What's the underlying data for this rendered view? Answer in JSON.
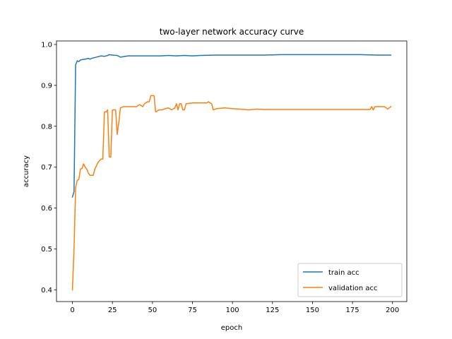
{
  "chart_data": {
    "type": "line",
    "title": "two-layer network accuracy curve",
    "xlabel": "epoch",
    "ylabel": "accuracy",
    "xlim": [
      -9.95,
      208.95
    ],
    "ylim": [
      0.3715,
      1.0085
    ],
    "xticks": [
      0,
      25,
      50,
      75,
      100,
      125,
      150,
      175,
      200
    ],
    "yticks": [
      0.4,
      0.5,
      0.6,
      0.7,
      0.8,
      0.9,
      1.0
    ],
    "xtick_labels": [
      "0",
      "25",
      "50",
      "75",
      "100",
      "125",
      "150",
      "175",
      "200"
    ],
    "ytick_labels": [
      "0.4",
      "0.5",
      "0.6",
      "0.7",
      "0.8",
      "0.9",
      "1.0"
    ],
    "grid": false,
    "legend_position": "lower-right",
    "series": [
      {
        "name": "train acc",
        "color": "#1f77b4",
        "points": [
          [
            0,
            0.627
          ],
          [
            1,
            0.64
          ],
          [
            2,
            0.95
          ],
          [
            3,
            0.96
          ],
          [
            4,
            0.958
          ],
          [
            5,
            0.962
          ],
          [
            6,
            0.963
          ],
          [
            8,
            0.964
          ],
          [
            10,
            0.966
          ],
          [
            11,
            0.964
          ],
          [
            12,
            0.966
          ],
          [
            14,
            0.968
          ],
          [
            16,
            0.97
          ],
          [
            18,
            0.972
          ],
          [
            20,
            0.971
          ],
          [
            22,
            0.973
          ],
          [
            23,
            0.975
          ],
          [
            25,
            0.974
          ],
          [
            28,
            0.973
          ],
          [
            30,
            0.969
          ],
          [
            33,
            0.971
          ],
          [
            35,
            0.972
          ],
          [
            40,
            0.972
          ],
          [
            50,
            0.972
          ],
          [
            55,
            0.972
          ],
          [
            60,
            0.973
          ],
          [
            65,
            0.972
          ],
          [
            70,
            0.973
          ],
          [
            75,
            0.972
          ],
          [
            80,
            0.973
          ],
          [
            90,
            0.974
          ],
          [
            100,
            0.974
          ],
          [
            110,
            0.974
          ],
          [
            120,
            0.974
          ],
          [
            130,
            0.975
          ],
          [
            140,
            0.975
          ],
          [
            150,
            0.975
          ],
          [
            160,
            0.975
          ],
          [
            170,
            0.975
          ],
          [
            180,
            0.975
          ],
          [
            190,
            0.974
          ],
          [
            199,
            0.974
          ]
        ]
      },
      {
        "name": "validation acc",
        "color": "#ff7f0e",
        "points": [
          [
            0,
            0.4
          ],
          [
            1,
            0.5
          ],
          [
            2,
            0.65
          ],
          [
            3,
            0.668
          ],
          [
            4,
            0.67
          ],
          [
            5,
            0.695
          ],
          [
            6,
            0.697
          ],
          [
            7,
            0.708
          ],
          [
            8,
            0.7
          ],
          [
            9,
            0.695
          ],
          [
            10,
            0.685
          ],
          [
            11,
            0.68
          ],
          [
            13,
            0.68
          ],
          [
            14,
            0.695
          ],
          [
            16,
            0.712
          ],
          [
            18,
            0.72
          ],
          [
            19,
            0.72
          ],
          [
            20,
            0.835
          ],
          [
            21,
            0.835
          ],
          [
            22,
            0.84
          ],
          [
            23,
            0.725
          ],
          [
            24,
            0.725
          ],
          [
            25,
            0.84
          ],
          [
            26,
            0.84
          ],
          [
            27,
            0.84
          ],
          [
            28,
            0.78
          ],
          [
            29,
            0.81
          ],
          [
            30,
            0.845
          ],
          [
            32,
            0.848
          ],
          [
            35,
            0.848
          ],
          [
            40,
            0.848
          ],
          [
            42,
            0.853
          ],
          [
            44,
            0.848
          ],
          [
            45,
            0.855
          ],
          [
            47,
            0.86
          ],
          [
            48,
            0.86
          ],
          [
            49,
            0.875
          ],
          [
            50,
            0.875
          ],
          [
            51,
            0.875
          ],
          [
            52,
            0.835
          ],
          [
            54,
            0.84
          ],
          [
            56,
            0.84
          ],
          [
            58,
            0.843
          ],
          [
            60,
            0.845
          ],
          [
            62,
            0.84
          ],
          [
            64,
            0.845
          ],
          [
            65,
            0.855
          ],
          [
            66,
            0.84
          ],
          [
            67,
            0.855
          ],
          [
            68,
            0.855
          ],
          [
            69,
            0.84
          ],
          [
            70,
            0.84
          ],
          [
            71,
            0.855
          ],
          [
            75,
            0.857
          ],
          [
            80,
            0.857
          ],
          [
            84,
            0.857
          ],
          [
            85,
            0.86
          ],
          [
            86,
            0.857
          ],
          [
            87,
            0.855
          ],
          [
            88,
            0.84
          ],
          [
            90,
            0.843
          ],
          [
            95,
            0.845
          ],
          [
            100,
            0.843
          ],
          [
            105,
            0.842
          ],
          [
            110,
            0.84
          ],
          [
            115,
            0.842
          ],
          [
            120,
            0.841
          ],
          [
            140,
            0.841
          ],
          [
            160,
            0.841
          ],
          [
            180,
            0.841
          ],
          [
            186,
            0.841
          ],
          [
            187,
            0.848
          ],
          [
            188,
            0.84
          ],
          [
            189,
            0.848
          ],
          [
            192,
            0.848
          ],
          [
            195,
            0.848
          ],
          [
            197,
            0.842
          ],
          [
            199,
            0.848
          ]
        ]
      }
    ]
  }
}
